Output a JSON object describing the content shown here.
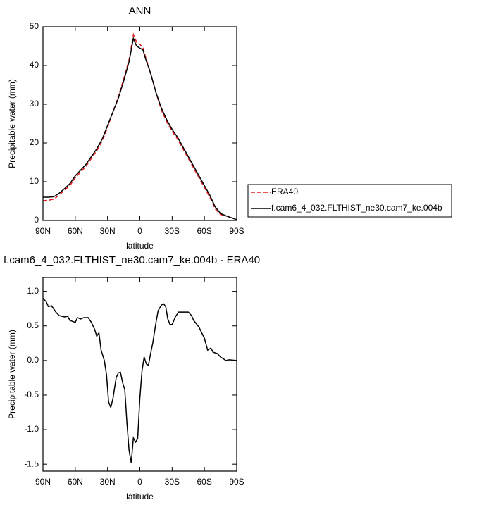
{
  "chart_data": [
    {
      "type": "line",
      "title": "ANN",
      "x_label": "latitude",
      "y_label": "Precipitable water (mm)",
      "x": [
        90,
        85,
        80,
        75,
        70,
        65,
        60,
        55,
        50,
        45,
        40,
        35,
        30,
        25,
        20,
        15,
        10,
        6,
        3,
        0,
        -3,
        -5,
        -10,
        -15,
        -20,
        -25,
        -30,
        -35,
        -40,
        -45,
        -50,
        -55,
        -60,
        -65,
        -70,
        -75,
        -80,
        -85,
        -90
      ],
      "series": [
        {
          "name": "ERA40",
          "color": "#e41a1c",
          "style": "dashed",
          "values": [
            5.1,
            5.2,
            5.5,
            6.5,
            7.8,
            9,
            11,
            12.5,
            14,
            16,
            18,
            20.5,
            24,
            28,
            32,
            36.5,
            41.5,
            48,
            46,
            45.5,
            44.5,
            42.5,
            38,
            33,
            28.5,
            25.5,
            23,
            21,
            18.5,
            16,
            13.5,
            11,
            8.5,
            6,
            3,
            1.5,
            1.2,
            0.8,
            0.2
          ]
        },
        {
          "name": "f.cam6_4_032.FLTHIST_ne30.cam7_ke.004b",
          "color": "#000000",
          "style": "solid",
          "values": [
            6.0,
            6.0,
            6.1,
            7,
            8.2,
            9.5,
            11.5,
            13,
            14.5,
            16.5,
            18.5,
            21,
            24.5,
            28,
            31.5,
            36,
            41,
            47,
            45,
            44.5,
            44,
            42,
            38,
            33,
            29,
            26,
            23.5,
            21.5,
            19,
            16.5,
            14,
            11.5,
            9,
            6.5,
            3.5,
            1.8,
            1.2,
            0.7,
            0.2
          ]
        }
      ],
      "xlim": [
        90,
        -90
      ],
      "xticks": [
        {
          "value": 90,
          "label": "90N"
        },
        {
          "value": 60,
          "label": "60N"
        },
        {
          "value": 30,
          "label": "30N"
        },
        0,
        {
          "value": -30,
          "label": "30S"
        },
        {
          "value": -60,
          "label": "60S"
        },
        {
          "value": -90,
          "label": "90S"
        }
      ],
      "ylim": [
        0,
        50
      ],
      "yticks": [
        0,
        10,
        20,
        30,
        40,
        50
      ],
      "legend": "right"
    },
    {
      "type": "line",
      "title": "f.cam6_4_032.FLTHIST_ne30.cam7_ke.004b - ERA40",
      "x_label": "latitude",
      "y_label": "Precipitable water (mm)",
      "x": [
        90,
        87,
        85,
        82,
        78,
        75,
        70,
        67,
        65,
        60,
        58,
        55,
        52,
        48,
        45,
        42,
        40,
        38,
        36,
        33,
        31,
        29,
        27,
        25,
        22,
        20,
        18,
        16,
        14,
        12,
        10,
        8,
        6,
        4,
        2,
        0,
        -2,
        -4,
        -6,
        -8,
        -10,
        -12,
        -15,
        -17,
        -20,
        -22,
        -24,
        -26,
        -28,
        -30,
        -33,
        -36,
        -40,
        -45,
        -48,
        -50,
        -55,
        -60,
        -63,
        -66,
        -68,
        -72,
        -75,
        -78,
        -80,
        -83,
        -90
      ],
      "series": [
        {
          "color": "#000000",
          "style": "solid",
          "values": [
            0.9,
            0.85,
            0.78,
            0.79,
            0.7,
            0.65,
            0.63,
            0.64,
            0.58,
            0.55,
            0.62,
            0.6,
            0.62,
            0.62,
            0.55,
            0.45,
            0.35,
            0.4,
            0.15,
            0.0,
            -0.2,
            -0.6,
            -0.68,
            -0.55,
            -0.25,
            -0.18,
            -0.17,
            -0.32,
            -0.42,
            -0.9,
            -1.3,
            -1.48,
            -1.12,
            -1.18,
            -1.13,
            -0.55,
            -0.15,
            0.05,
            -0.05,
            -0.07,
            0.1,
            0.25,
            0.55,
            0.72,
            0.8,
            0.82,
            0.78,
            0.6,
            0.52,
            0.52,
            0.63,
            0.7,
            0.7,
            0.7,
            0.65,
            0.58,
            0.48,
            0.32,
            0.15,
            0.18,
            0.12,
            0.1,
            0.05,
            0.02,
            0.0,
            0.01,
            0.0
          ]
        }
      ],
      "xlim": [
        90,
        -90
      ],
      "xticks": [
        {
          "value": 90,
          "label": "90N"
        },
        {
          "value": 60,
          "label": "60N"
        },
        {
          "value": 30,
          "label": "30N"
        },
        0,
        {
          "value": -30,
          "label": "30S"
        },
        {
          "value": -60,
          "label": "60S"
        },
        {
          "value": -90,
          "label": "90S"
        }
      ],
      "ylim": [
        -1.6,
        1.2
      ],
      "yticks": [
        {
          "value": -1.5,
          "label": "-1.5"
        },
        {
          "value": -1.0,
          "label": "-1.0"
        },
        -0.5,
        {
          "value": 0,
          "label": "0.0"
        },
        0.5,
        {
          "value": 1.0,
          "label": "1.0"
        }
      ]
    }
  ]
}
